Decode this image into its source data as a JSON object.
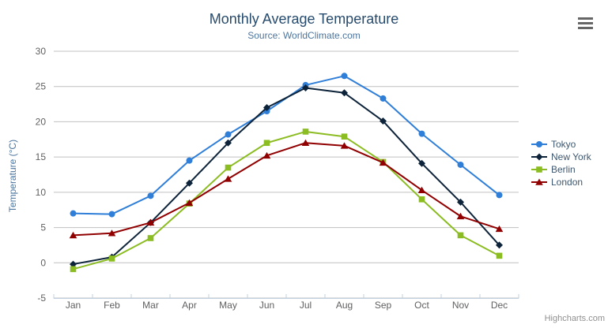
{
  "header": {
    "menu_icon": "hamburger-menu-icon"
  },
  "credits": {
    "label": "Highcharts.com"
  },
  "colors": {
    "background": "#ffffff",
    "title": "#274b6d",
    "subtitle": "#4d759e",
    "axis_title": "#4d759e",
    "tick_label": "#606060",
    "grid": "#c0c0c0",
    "axis_line": "#c0d0e0",
    "legend_text": "#3e576f",
    "credits": "#909090",
    "menu_icon": "#666666"
  },
  "chart_data": {
    "type": "line",
    "title": "Monthly Average Temperature",
    "subtitle": "Source: WorldClimate.com",
    "xlabel": "",
    "ylabel": "Temperature (°C)",
    "categories": [
      "Jan",
      "Feb",
      "Mar",
      "Apr",
      "May",
      "Jun",
      "Jul",
      "Aug",
      "Sep",
      "Oct",
      "Nov",
      "Dec"
    ],
    "ylim": [
      -5,
      30
    ],
    "yticks": [
      -5,
      0,
      5,
      10,
      15,
      20,
      25,
      30
    ],
    "grid": true,
    "legend_position": "right",
    "series": [
      {
        "name": "Tokyo",
        "color": "#2f7ed8",
        "marker": "circle",
        "values": [
          7.0,
          6.9,
          9.5,
          14.5,
          18.2,
          21.5,
          25.2,
          26.5,
          23.3,
          18.3,
          13.9,
          9.6
        ]
      },
      {
        "name": "New York",
        "color": "#0d233a",
        "marker": "diamond",
        "values": [
          -0.2,
          0.8,
          5.7,
          11.3,
          17.0,
          22.0,
          24.8,
          24.1,
          20.1,
          14.1,
          8.6,
          2.5
        ]
      },
      {
        "name": "Berlin",
        "color": "#8bbc21",
        "marker": "square",
        "values": [
          -0.9,
          0.6,
          3.5,
          8.4,
          13.5,
          17.0,
          18.6,
          17.9,
          14.3,
          9.0,
          3.9,
          1.0
        ]
      },
      {
        "name": "London",
        "color": "#910000",
        "marker": "triangle",
        "values": [
          3.9,
          4.2,
          5.7,
          8.5,
          11.9,
          15.2,
          17.0,
          16.6,
          14.2,
          10.3,
          6.6,
          4.8
        ]
      }
    ]
  }
}
